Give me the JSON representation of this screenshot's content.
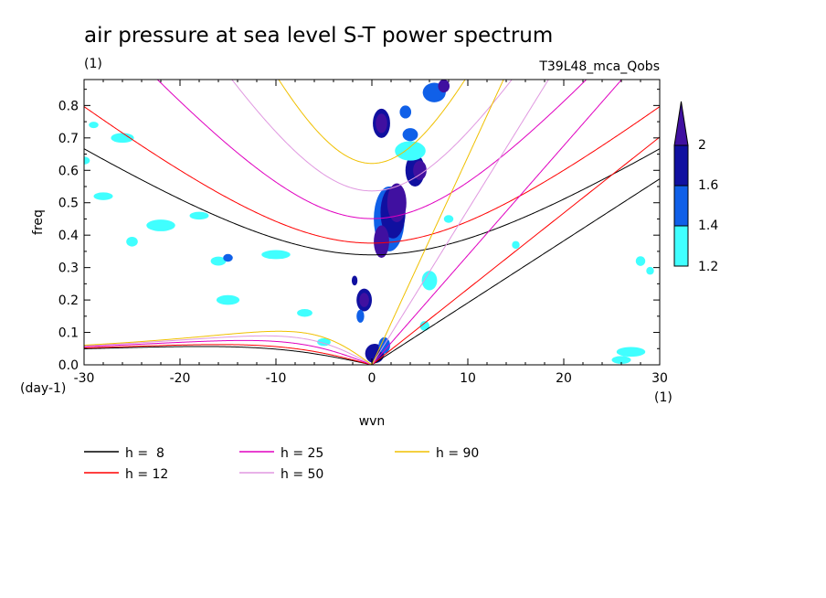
{
  "chart_data": {
    "type": "line",
    "title": "air pressure at sea level S-T power spectrum",
    "subtitle_left": "(1)",
    "subtitle_right": "T39L48_mca_Qobs",
    "xlabel": "wvn",
    "ylabel": "freq",
    "x_unit": "(1)",
    "y_unit": "(day-1)",
    "xlim": [
      -30,
      30
    ],
    "ylim": [
      0,
      0.88
    ],
    "x_ticks": [
      {
        "value": -30,
        "label": "-30"
      },
      {
        "value": -20,
        "label": "-20"
      },
      {
        "value": -10,
        "label": "-10"
      },
      {
        "value": 0,
        "label": "0"
      },
      {
        "value": 10,
        "label": "10"
      },
      {
        "value": 20,
        "label": "20"
      },
      {
        "value": 30,
        "label": "30"
      }
    ],
    "y_ticks": [
      {
        "value": 0.0,
        "label": "0.0"
      },
      {
        "value": 0.1,
        "label": "0.1"
      },
      {
        "value": 0.2,
        "label": "0.2"
      },
      {
        "value": 0.3,
        "label": "0.3"
      },
      {
        "value": 0.4,
        "label": "0.4"
      },
      {
        "value": 0.5,
        "label": "0.5"
      },
      {
        "value": 0.6,
        "label": "0.6"
      },
      {
        "value": 0.7,
        "label": "0.7"
      },
      {
        "value": 0.8,
        "label": "0.8"
      }
    ],
    "series": [
      {
        "name": "h =  8",
        "label": "h =  8",
        "h": 8,
        "color": "#000000"
      },
      {
        "name": "h = 12",
        "label": "h = 12",
        "h": 12,
        "color": "#ff0000"
      },
      {
        "name": "h = 25",
        "label": "h = 25",
        "h": 25,
        "color": "#e000c0"
      },
      {
        "name": "h = 50",
        "label": "h = 50",
        "h": 50,
        "color": "#e098e0"
      },
      {
        "name": "h = 90",
        "label": "h = 90",
        "h": 90,
        "color": "#f0c000"
      }
    ],
    "colorbar": {
      "levels": [
        {
          "label": "1.2",
          "value": 1.2,
          "color": "#40ffff"
        },
        {
          "label": "1.4",
          "value": 1.4,
          "color": "#1060e8"
        },
        {
          "label": "1.6",
          "value": 1.6,
          "color": "#1010a0"
        },
        {
          "label": "2",
          "value": 2,
          "color": "#4010a0"
        }
      ]
    },
    "shaded_regions": [
      {
        "x": 1.0,
        "y": 0.745,
        "rx": 0.9,
        "ry": 0.045,
        "level": 3
      },
      {
        "x": 1.0,
        "y": 0.745,
        "rx": 0.6,
        "ry": 0.03,
        "level": 4
      },
      {
        "x": 1.8,
        "y": 0.45,
        "rx": 1.6,
        "ry": 0.1,
        "level": 2
      },
      {
        "x": 2.2,
        "y": 0.47,
        "rx": 1.3,
        "ry": 0.08,
        "level": 3
      },
      {
        "x": 2.6,
        "y": 0.5,
        "rx": 1.0,
        "ry": 0.06,
        "level": 4
      },
      {
        "x": 1.0,
        "y": 0.38,
        "rx": 0.8,
        "ry": 0.05,
        "level": 4
      },
      {
        "x": 4.5,
        "y": 0.6,
        "rx": 1.0,
        "ry": 0.05,
        "level": 3
      },
      {
        "x": 5.0,
        "y": 0.6,
        "rx": 0.7,
        "ry": 0.03,
        "level": 4
      },
      {
        "x": 4.0,
        "y": 0.66,
        "rx": 1.6,
        "ry": 0.03,
        "level": 1
      },
      {
        "x": 6.5,
        "y": 0.84,
        "rx": 1.2,
        "ry": 0.03,
        "level": 2
      },
      {
        "x": 7.5,
        "y": 0.86,
        "rx": 0.6,
        "ry": 0.02,
        "level": 4
      },
      {
        "x": -0.8,
        "y": 0.2,
        "rx": 0.8,
        "ry": 0.035,
        "level": 3
      },
      {
        "x": -0.8,
        "y": 0.2,
        "rx": 0.5,
        "ry": 0.022,
        "level": 4
      },
      {
        "x": -1.8,
        "y": 0.26,
        "rx": 0.3,
        "ry": 0.015,
        "level": 3
      },
      {
        "x": -1.2,
        "y": 0.15,
        "rx": 0.4,
        "ry": 0.02,
        "level": 2
      },
      {
        "x": 0.3,
        "y": 0.035,
        "rx": 1.0,
        "ry": 0.03,
        "level": 3
      },
      {
        "x": 1.3,
        "y": 0.06,
        "rx": 0.6,
        "ry": 0.025,
        "level": 2
      },
      {
        "x": 3.5,
        "y": 0.78,
        "rx": 0.6,
        "ry": 0.02,
        "level": 2
      },
      {
        "x": 4.0,
        "y": 0.71,
        "rx": 0.8,
        "ry": 0.02,
        "level": 2
      },
      {
        "x": 6.0,
        "y": 0.26,
        "rx": 0.8,
        "ry": 0.03,
        "level": 1
      },
      {
        "x": 5.5,
        "y": 0.12,
        "rx": 0.5,
        "ry": 0.015,
        "level": 1
      },
      {
        "x": -26,
        "y": 0.7,
        "rx": 1.2,
        "ry": 0.015,
        "level": 1
      },
      {
        "x": -28,
        "y": 0.52,
        "rx": 1.0,
        "ry": 0.012,
        "level": 1
      },
      {
        "x": -22,
        "y": 0.43,
        "rx": 1.5,
        "ry": 0.018,
        "level": 1
      },
      {
        "x": -18,
        "y": 0.46,
        "rx": 1.0,
        "ry": 0.012,
        "level": 1
      },
      {
        "x": -16,
        "y": 0.32,
        "rx": 0.8,
        "ry": 0.014,
        "level": 1
      },
      {
        "x": -15,
        "y": 0.2,
        "rx": 1.2,
        "ry": 0.015,
        "level": 1
      },
      {
        "x": -15,
        "y": 0.33,
        "rx": 0.5,
        "ry": 0.012,
        "level": 2
      },
      {
        "x": -10,
        "y": 0.34,
        "rx": 1.5,
        "ry": 0.014,
        "level": 1
      },
      {
        "x": -7,
        "y": 0.16,
        "rx": 0.8,
        "ry": 0.012,
        "level": 1
      },
      {
        "x": -25,
        "y": 0.38,
        "rx": 0.6,
        "ry": 0.015,
        "level": 1
      },
      {
        "x": -5,
        "y": 0.07,
        "rx": 0.7,
        "ry": 0.012,
        "level": 1
      },
      {
        "x": 8,
        "y": 0.45,
        "rx": 0.5,
        "ry": 0.012,
        "level": 1
      },
      {
        "x": 28,
        "y": 0.32,
        "rx": 0.5,
        "ry": 0.015,
        "level": 1
      },
      {
        "x": 29,
        "y": 0.29,
        "rx": 0.4,
        "ry": 0.012,
        "level": 1
      },
      {
        "x": 27,
        "y": 0.04,
        "rx": 1.5,
        "ry": 0.015,
        "level": 1
      },
      {
        "x": 26,
        "y": 0.015,
        "rx": 1.0,
        "ry": 0.012,
        "level": 1
      },
      {
        "x": 15,
        "y": 0.37,
        "rx": 0.4,
        "ry": 0.012,
        "level": 1
      },
      {
        "x": -30,
        "y": 0.63,
        "rx": 0.6,
        "ry": 0.012,
        "level": 1
      },
      {
        "x": -29,
        "y": 0.74,
        "rx": 0.5,
        "ry": 0.01,
        "level": 1
      }
    ]
  }
}
